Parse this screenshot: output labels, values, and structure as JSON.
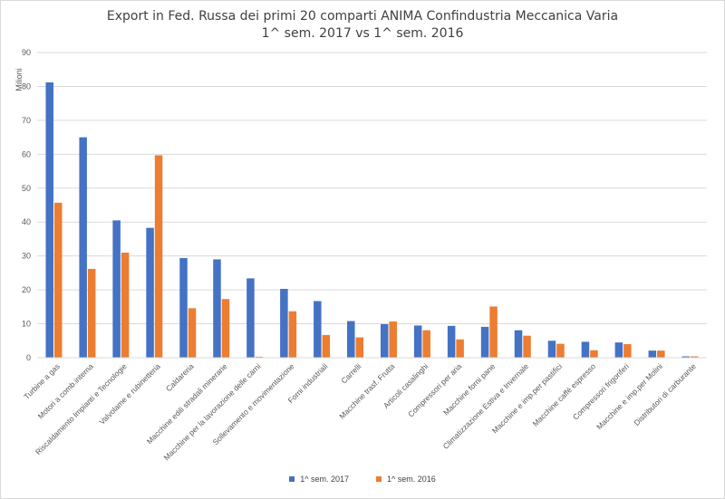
{
  "chart_data": {
    "type": "bar",
    "title": [
      "Export in Fed. Russa dei primi 20 comparti ANIMA Confindustria Meccanica Varia",
      "1^ sem. 2017 vs 1^ sem. 2016"
    ],
    "ylabel": "Milioni",
    "ylim": [
      0,
      90
    ],
    "yticks": [
      "0",
      "10",
      "20",
      "30",
      "40",
      "50",
      "60",
      "70",
      "80",
      "90"
    ],
    "grid": true,
    "legend_position": "bottom",
    "categories": [
      "Turbine a gas",
      "Motori a comb.interna",
      "Riscaldamento Impianti e Tecnologie",
      "Valvolame e rubinetteria",
      "Caldareria",
      "Macchine edili stradali minerarie",
      "Macchine per la lavorazione delle carni",
      "Sollevamento e movimentazione",
      "Forni industriali",
      "Carrelli",
      "Macchine trasf. Frutta",
      "Articoli casalinghi",
      "Compressori per aria",
      "Macchine forni pane",
      "Climatizzazione Estiva e Invernale",
      "Macchine e imp.per pastifici",
      "Macchine caffè espresso",
      "Compressori frigoriferi",
      "Macchine e imp.per Molini",
      "Distributori di carburante"
    ],
    "series": [
      {
        "name": "1^ sem. 2017",
        "color": "#4472c4",
        "values": [
          81.2,
          65,
          40.5,
          38.3,
          29.4,
          29,
          23.4,
          20.3,
          16.7,
          10.8,
          9.9,
          9.5,
          9.4,
          9.1,
          8.1,
          5,
          4.7,
          4.5,
          2.1,
          0.4
        ]
      },
      {
        "name": "1^ sem. 2016",
        "color": "#ed7d31",
        "values": [
          45.7,
          26.2,
          31,
          59.7,
          14.6,
          17.3,
          0.3,
          13.7,
          6.7,
          6,
          10.7,
          8.1,
          5.4,
          15.1,
          6.5,
          4.1,
          2.2,
          4,
          2.1,
          0.4
        ]
      }
    ]
  }
}
